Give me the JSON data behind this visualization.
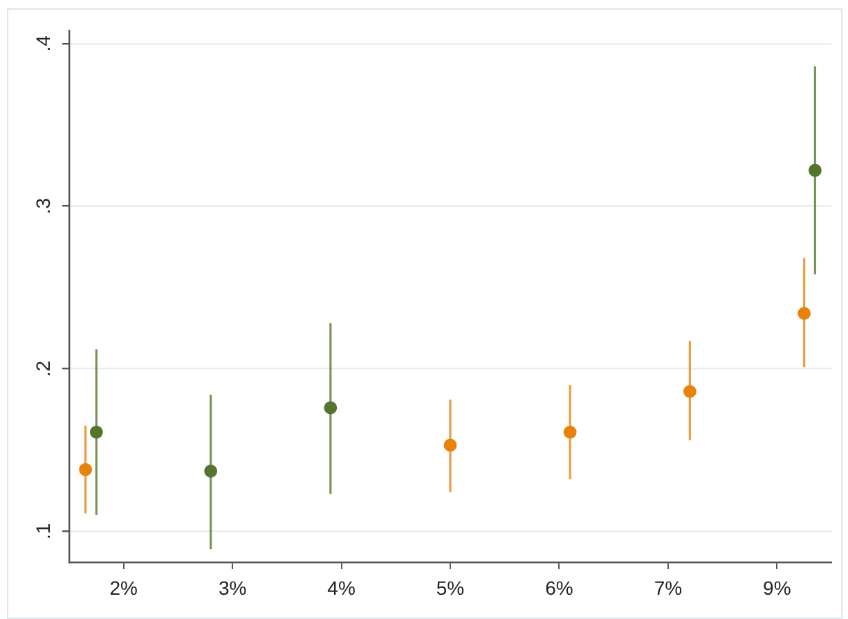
{
  "chart_data": {
    "type": "scatter",
    "categories": [
      "2%",
      "3%",
      "4%",
      "5%",
      "6%",
      "7%",
      "9%"
    ],
    "ylim": [
      0.081,
      0.408
    ],
    "yticks": [
      {
        "value": 0.1,
        "label": ".1"
      },
      {
        "value": 0.2,
        "label": ".2"
      },
      {
        "value": 0.3,
        "label": ".3"
      },
      {
        "value": 0.4,
        "label": ".4"
      }
    ],
    "grid": "y",
    "legend": false,
    "marker": "circle",
    "series": [
      {
        "color": "#e8820c",
        "values": [
          0.138,
          null,
          null,
          0.153,
          0.161,
          0.186,
          0.234
        ],
        "errors": [
          [
            0.111,
            0.165
          ],
          null,
          null,
          [
            0.124,
            0.181
          ],
          [
            0.132,
            0.19
          ],
          [
            0.156,
            0.217
          ],
          [
            0.201,
            0.268
          ]
        ]
      },
      {
        "color": "#55742e",
        "values": [
          0.161,
          0.137,
          0.176,
          null,
          null,
          null,
          0.322
        ],
        "errors": [
          [
            0.11,
            0.212
          ],
          [
            0.089,
            0.184
          ],
          [
            0.123,
            0.228
          ],
          null,
          null,
          null,
          [
            0.258,
            0.386
          ]
        ]
      }
    ]
  }
}
